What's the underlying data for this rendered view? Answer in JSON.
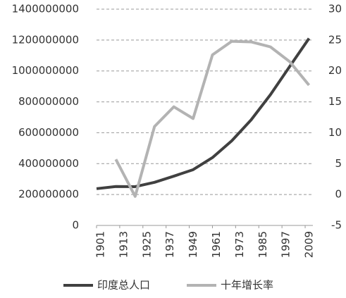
{
  "chart_data": {
    "type": "line",
    "x": [
      1901,
      1911,
      1921,
      1931,
      1941,
      1951,
      1961,
      1971,
      1981,
      1991,
      2001,
      2011
    ],
    "xlim": [
      1901,
      2013
    ],
    "xticks": [
      1901,
      1913,
      1925,
      1937,
      1949,
      1961,
      1973,
      1985,
      1997,
      2009
    ],
    "ylim": [
      0,
      1400000000
    ],
    "yticks": [
      0,
      200000000,
      400000000,
      600000000,
      800000000,
      1000000000,
      1200000000,
      1400000000
    ],
    "y2lim": [
      -5,
      30
    ],
    "y2ticks": [
      -5,
      0,
      5,
      10,
      15,
      20,
      25,
      30
    ],
    "grid": true,
    "legend": "bottom",
    "series": [
      {
        "name": "印度总人口",
        "color": "#404040",
        "values": [
          238000000,
          252000000,
          251000000,
          279000000,
          319000000,
          361000000,
          439000000,
          548000000,
          683000000,
          846000000,
          1029000000,
          1211000000
        ]
      },
      {
        "name": "十年增长率",
        "color": "#b3b3b3",
        "axis": "y2",
        "values": [
          null,
          5.7,
          -0.3,
          11,
          14.2,
          12.3,
          22.6,
          24.8,
          24.7,
          23.9,
          21.5,
          17.7
        ]
      }
    ]
  }
}
